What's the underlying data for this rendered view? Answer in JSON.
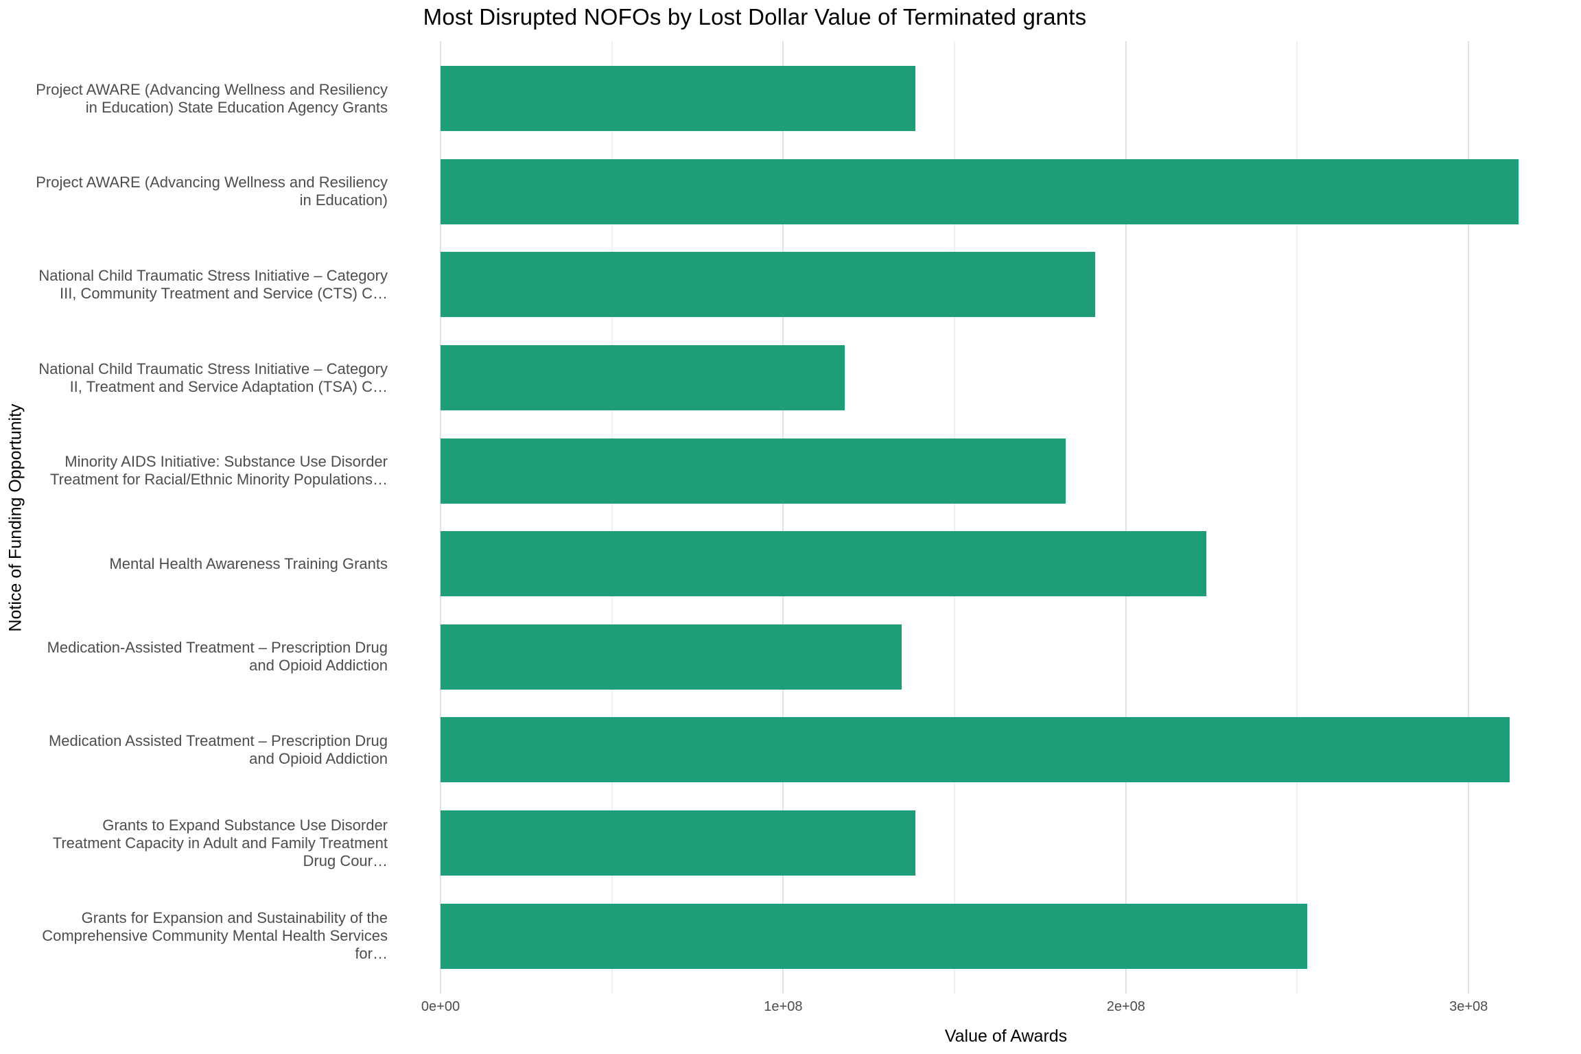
{
  "chart_data": {
    "type": "bar",
    "orientation": "horizontal",
    "title": "Most Disrupted NOFOs by Lost Dollar Value of Terminated grants",
    "xlabel": "Value of Awards",
    "ylabel": "Notice of Funding Opportunity",
    "bar_color": "#1d9e79",
    "background_color": "#ffffff",
    "gridline_major_color": "#e2e2e2",
    "gridline_minor_color": "#f0f0f0",
    "tick_label_color": "#4d4d4d",
    "xlim": [
      0,
      330000000
    ],
    "x_ticks": [
      {
        "label": "0e+00",
        "value": 0
      },
      {
        "label": "1e+08",
        "value": 100000000
      },
      {
        "label": "2e+08",
        "value": 200000000
      },
      {
        "label": "3e+08",
        "value": 300000000
      }
    ],
    "minor_gridlines": [
      50000000,
      150000000,
      250000000
    ],
    "categories": [
      "Project AWARE (Advancing Wellness and Resiliency in Education) State Education Agency Grants",
      "Project AWARE (Advancing Wellness and Resiliency in Education)",
      "National Child Traumatic Stress Initiative – Category III, Community Treatment and Service (CTS) C…",
      "National Child Traumatic Stress Initiative – Category II, Treatment and Service Adaptation (TSA) C…",
      "Minority AIDS Initiative: Substance Use Disorder Treatment for Racial/Ethnic Minority Populations…",
      "Mental Health Awareness Training Grants",
      "Medication-Assisted Treatment – Prescription Drug and Opioid Addiction",
      "Medication Assisted Treatment – Prescription Drug and Opioid Addiction",
      "Grants to Expand Substance Use Disorder Treatment Capacity in Adult and Family Treatment Drug Cour…",
      "Grants for Expansion and Sustainability of the Comprehensive Community Mental Health Services for…"
    ],
    "values": [
      138500000,
      314500000,
      191000000,
      118000000,
      182500000,
      223500000,
      134500000,
      312000000,
      138500000,
      253000000
    ]
  }
}
